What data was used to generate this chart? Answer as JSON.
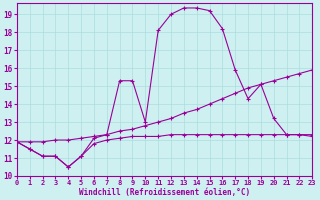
{
  "xlabel": "Windchill (Refroidissement éolien,°C)",
  "bg_color": "#cff0f0",
  "grid_color": "#aadddd",
  "line_color": "#990099",
  "xlim": [
    0,
    23
  ],
  "ylim": [
    10,
    19.6
  ],
  "yticks": [
    10,
    11,
    12,
    13,
    14,
    15,
    16,
    17,
    18,
    19
  ],
  "xticks": [
    0,
    1,
    2,
    3,
    4,
    5,
    6,
    7,
    8,
    9,
    10,
    11,
    12,
    13,
    14,
    15,
    16,
    17,
    18,
    19,
    20,
    21,
    22,
    23
  ],
  "series_flat_x": [
    0,
    1,
    2,
    3,
    4,
    5,
    6,
    7,
    8,
    9,
    10,
    11,
    12,
    13,
    14,
    15,
    16,
    17,
    18,
    19,
    20,
    21,
    22,
    23
  ],
  "series_flat_y": [
    11.9,
    11.5,
    11.1,
    11.1,
    10.5,
    11.1,
    11.8,
    12.0,
    12.1,
    12.2,
    12.2,
    12.2,
    12.3,
    12.3,
    12.3,
    12.3,
    12.3,
    12.3,
    12.3,
    12.3,
    12.3,
    12.3,
    12.3,
    12.3
  ],
  "series_curve_x": [
    0,
    1,
    2,
    3,
    4,
    5,
    6,
    7,
    8,
    9,
    10,
    11,
    12,
    13,
    14,
    15,
    16,
    17,
    18,
    19,
    20,
    21,
    22,
    23
  ],
  "series_curve_y": [
    11.9,
    11.5,
    11.1,
    11.1,
    10.5,
    11.1,
    12.1,
    12.3,
    15.3,
    15.3,
    13.0,
    18.1,
    19.0,
    19.35,
    19.35,
    19.2,
    18.2,
    15.9,
    14.3,
    15.1,
    13.2,
    12.3,
    12.3,
    12.2
  ],
  "series_diag_x": [
    0,
    1,
    2,
    3,
    4,
    5,
    6,
    7,
    8,
    9,
    10,
    11,
    12,
    13,
    14,
    15,
    16,
    17,
    18,
    19,
    20,
    21,
    22,
    23
  ],
  "series_diag_y": [
    11.9,
    11.9,
    11.9,
    12.0,
    12.0,
    12.1,
    12.2,
    12.3,
    12.5,
    12.6,
    12.8,
    13.0,
    13.2,
    13.5,
    13.7,
    14.0,
    14.3,
    14.6,
    14.9,
    15.1,
    15.3,
    15.5,
    15.7,
    15.9
  ]
}
